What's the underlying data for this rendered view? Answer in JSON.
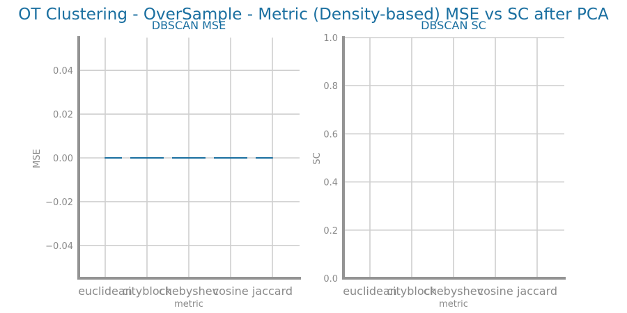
{
  "figure": {
    "suptitle": "OT Clustering - OverSample - Metric (Density-based) MSE vs SC after PCA"
  },
  "chart_data": [
    {
      "type": "line",
      "title": "DBSCAN MSE",
      "xlabel": "metric",
      "ylabel": "MSE",
      "categories": [
        "euclidean",
        "cityblock",
        "chebyshev",
        "cosine",
        "jaccard"
      ],
      "series": [
        {
          "values": [
            0,
            0,
            0,
            0,
            0
          ],
          "color": "#1a6fa0"
        }
      ],
      "ylim": [
        -0.055,
        0.055
      ],
      "yticks": [
        0.04,
        0.02,
        0.0,
        -0.02,
        -0.04
      ],
      "ytick_labels": [
        "0.04",
        "0.02",
        "0.00",
        "−0.02",
        "−0.04"
      ],
      "grid": true
    },
    {
      "type": "line",
      "title": "DBSCAN SC",
      "xlabel": "metric",
      "ylabel": "SC",
      "categories": [
        "euclidean",
        "cityblock",
        "chebyshev",
        "cosine",
        "jaccard"
      ],
      "series": [],
      "ylim": [
        0.0,
        1.0
      ],
      "yticks": [
        1.0,
        0.8,
        0.6,
        0.4,
        0.2,
        0.0
      ],
      "ytick_labels": [
        "1.0",
        "0.8",
        "0.6",
        "0.4",
        "0.2",
        "0.0"
      ],
      "grid": true
    }
  ]
}
